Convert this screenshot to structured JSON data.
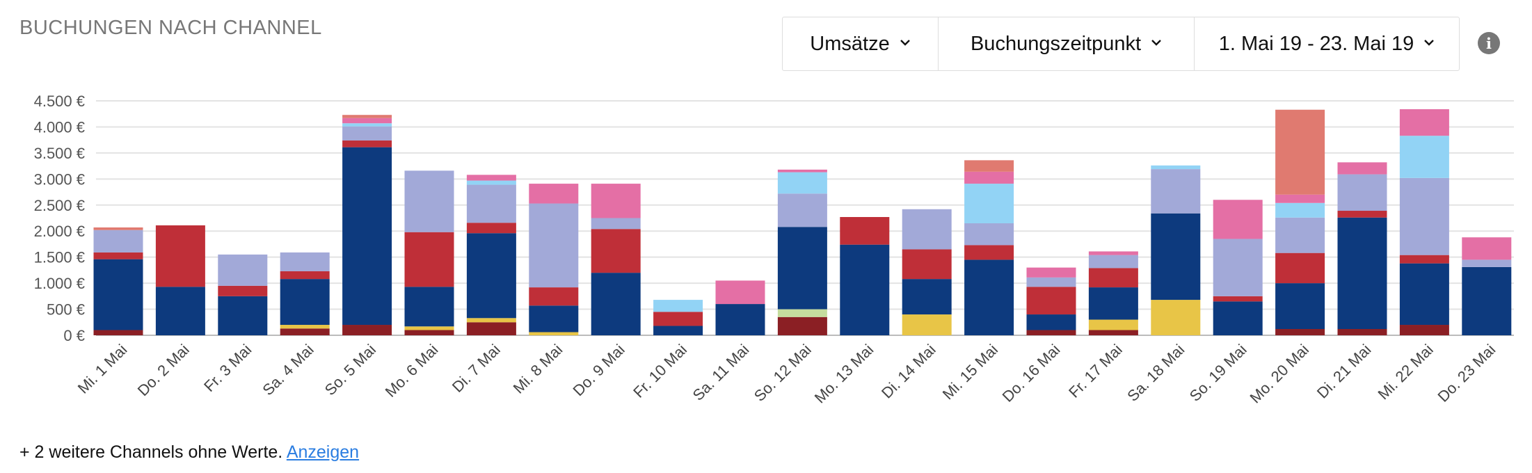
{
  "header": {
    "title": "BUCHUNGEN NACH CHANNEL",
    "controls": [
      {
        "label": "Umsätze",
        "icon": "chevron-down-icon"
      },
      {
        "label": "Buchungszeitpunkt",
        "icon": "chevron-down-icon"
      },
      {
        "label": "1. Mai 19 - 23. Mai 19",
        "icon": "chevron-down-icon"
      }
    ],
    "info_icon": "info-icon",
    "info_glyph": "i"
  },
  "footer": {
    "text": "+ 2 weitere Channels ohne Werte.",
    "link": "Anzeigen"
  },
  "chart_data": {
    "type": "bar",
    "stacked": true,
    "ylim": [
      0,
      4500
    ],
    "ytick_values": [
      0,
      500,
      1000,
      1500,
      2000,
      2500,
      3000,
      3500,
      4000,
      4500
    ],
    "ytick_labels": [
      "0 €",
      "500 €",
      "1.000 €",
      "1.500 €",
      "2.000 €",
      "2.500 €",
      "3.000 €",
      "3.500 €",
      "4.000 €",
      "4.500 €"
    ],
    "grid": true,
    "categories": [
      "Mi. 1 Mai",
      "Do. 2 Mai",
      "Fr. 3 Mai",
      "Sa. 4 Mai",
      "So. 5 Mai",
      "Mo. 6 Mai",
      "Di. 7 Mai",
      "Mi. 8 Mai",
      "Do. 9 Mai",
      "Fr. 10 Mai",
      "Sa. 11 Mai",
      "So. 12 Mai",
      "Mo. 13 Mai",
      "Di. 14 Mai",
      "Mi. 15 Mai",
      "Do. 16 Mai",
      "Fr. 17 Mai",
      "Sa. 18 Mai",
      "So. 19 Mai",
      "Mo. 20 Mai",
      "Di. 21 Mai",
      "Mi. 22 Mai",
      "Do. 23 Mai"
    ],
    "series": [
      {
        "color": "#8b1f24",
        "values": [
          100,
          0,
          0,
          130,
          200,
          100,
          250,
          0,
          0,
          0,
          0,
          350,
          0,
          0,
          0,
          100,
          100,
          0,
          0,
          120,
          120,
          200,
          0
        ]
      },
      {
        "color": "#e8c547",
        "values": [
          0,
          0,
          0,
          70,
          0,
          70,
          80,
          60,
          0,
          0,
          0,
          0,
          0,
          400,
          0,
          0,
          200,
          680,
          0,
          0,
          0,
          0,
          0
        ]
      },
      {
        "color": "#c5dc9e",
        "values": [
          0,
          0,
          0,
          0,
          0,
          0,
          0,
          0,
          0,
          0,
          0,
          150,
          0,
          0,
          0,
          0,
          0,
          0,
          0,
          0,
          0,
          0,
          0
        ]
      },
      {
        "color": "#0d3a7e",
        "values": [
          1360,
          930,
          750,
          880,
          3410,
          760,
          1630,
          510,
          1200,
          180,
          600,
          1580,
          1740,
          680,
          1450,
          300,
          620,
          1660,
          650,
          880,
          2140,
          1180,
          1310
        ]
      },
      {
        "color": "#bf2f38",
        "values": [
          130,
          1180,
          200,
          150,
          130,
          1050,
          200,
          350,
          840,
          270,
          0,
          0,
          530,
          570,
          280,
          530,
          370,
          0,
          100,
          580,
          130,
          160,
          0
        ]
      },
      {
        "color": "#a2a9d8",
        "values": [
          430,
          0,
          600,
          360,
          270,
          1180,
          730,
          1610,
          210,
          0,
          0,
          640,
          0,
          770,
          420,
          180,
          250,
          850,
          1100,
          680,
          700,
          1480,
          140
        ]
      },
      {
        "color": "#92d3f5",
        "values": [
          0,
          0,
          0,
          0,
          60,
          0,
          80,
          0,
          0,
          230,
          0,
          410,
          0,
          0,
          760,
          0,
          0,
          70,
          0,
          280,
          0,
          810,
          0
        ]
      },
      {
        "color": "#e46fa5",
        "values": [
          0,
          0,
          0,
          0,
          100,
          0,
          110,
          380,
          660,
          0,
          450,
          50,
          0,
          0,
          230,
          190,
          70,
          0,
          750,
          160,
          230,
          510,
          430
        ]
      },
      {
        "color": "#e07a70",
        "values": [
          50,
          0,
          0,
          0,
          60,
          0,
          0,
          0,
          0,
          0,
          0,
          0,
          0,
          0,
          220,
          0,
          0,
          0,
          0,
          1630,
          0,
          0,
          0
        ]
      }
    ]
  }
}
